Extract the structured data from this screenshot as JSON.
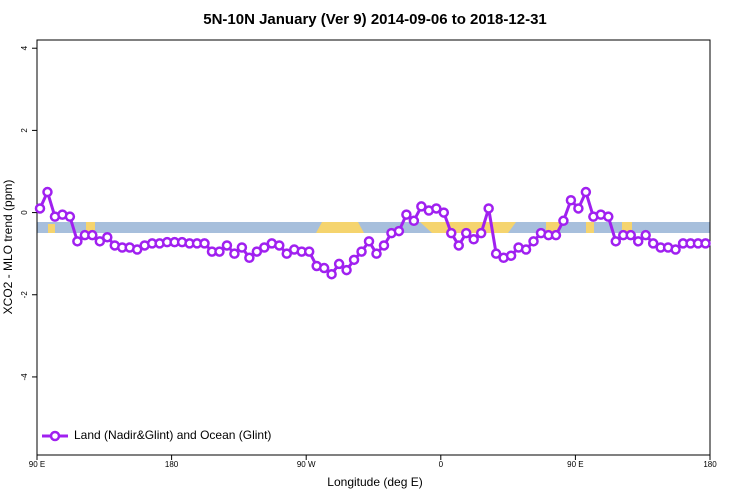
{
  "chart_data": {
    "type": "line",
    "title": "5N-10N January (Ver 9)   2014-09-06 to 2018-12-31",
    "xlabel": "Longitude (deg E)",
    "ylabel": "XCO2 - MLO trend (ppm)",
    "xlim": [
      90,
      540
    ],
    "ylim": [
      -5.9,
      4.2
    ],
    "xticks": [
      {
        "value": 90,
        "label": "90 E"
      },
      180,
      {
        "value": 270,
        "label": "90 W"
      },
      {
        "value": 360,
        "label": "0"
      },
      {
        "value": 450,
        "label": "90 E"
      },
      {
        "value": 540,
        "label": "180"
      }
    ],
    "yticks": [
      4,
      2,
      0,
      -2,
      -4
    ],
    "legend": "bottom-left",
    "x": [
      92,
      97,
      102,
      107,
      112,
      117,
      122,
      127,
      132,
      137,
      142,
      147,
      152,
      157,
      162,
      167,
      172,
      177,
      182,
      187,
      192,
      197,
      202,
      207,
      212,
      217,
      222,
      227,
      232,
      237,
      242,
      247,
      252,
      257,
      262,
      267,
      272,
      277,
      282,
      287,
      292,
      297,
      302,
      307,
      312,
      317,
      322,
      327,
      332,
      337,
      342,
      347,
      352,
      357,
      362,
      367,
      372,
      377,
      382,
      387,
      392,
      397,
      402,
      407,
      412,
      417,
      422,
      427,
      432,
      437,
      442,
      447,
      452,
      457,
      462,
      467,
      472,
      477,
      482,
      487,
      492,
      497,
      502,
      507,
      512,
      517,
      522,
      527,
      532,
      537
    ],
    "series": [
      {
        "name": "Land (Nadir&Glint) and Ocean (Glint)",
        "color": "#a020f0",
        "values": [
          0.1,
          0.5,
          -0.1,
          -0.05,
          -0.1,
          -0.7,
          -0.55,
          -0.55,
          -0.7,
          -0.6,
          -0.8,
          -0.85,
          -0.85,
          -0.9,
          -0.8,
          -0.75,
          -0.75,
          -0.72,
          -0.72,
          -0.72,
          -0.75,
          -0.75,
          -0.75,
          -0.95,
          -0.95,
          -0.8,
          -1.0,
          -0.85,
          -1.1,
          -0.95,
          -0.85,
          -0.75,
          -0.8,
          -1.0,
          -0.9,
          -0.95,
          -0.95,
          -1.3,
          -1.35,
          -1.5,
          -1.25,
          -1.4,
          -1.15,
          -0.95,
          -0.7,
          -1.0,
          -0.8,
          -0.5,
          -0.45,
          -0.05,
          -0.2,
          0.15,
          0.05,
          0.1,
          0,
          -0.5,
          -0.8,
          -0.5,
          -0.65,
          -0.5,
          0.1,
          -1.0,
          -1.1,
          -1.05,
          -0.85,
          -0.9,
          -0.7,
          -0.5,
          -0.55,
          -0.55,
          -0.2,
          0.3,
          0.1,
          0.5,
          -0.1,
          -0.05,
          -0.1,
          -0.7,
          -0.55,
          -0.55,
          -0.7,
          -0.55,
          -0.75,
          -0.85,
          -0.85,
          -0.9,
          -0.75,
          -0.75,
          -0.75,
          -0.75
        ]
      }
    ]
  }
}
